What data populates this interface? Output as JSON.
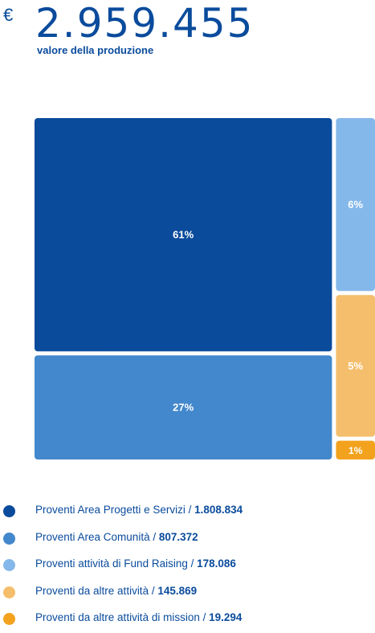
{
  "header": {
    "currency": "€",
    "total": "2.959.455",
    "subtitle": "valore della produzione"
  },
  "chart_data": {
    "type": "treemap",
    "title": "",
    "series": [
      {
        "name": "Proventi Area Progetti e Servizi",
        "value": 1808834,
        "value_label": "1.808.834",
        "percent_label": "61%",
        "color": "#0a4b9c"
      },
      {
        "name": "Proventi Area Comunità",
        "value": 807372,
        "value_label": "807.372",
        "percent_label": "27%",
        "color": "#4387cc"
      },
      {
        "name": "Proventi attività di Fund Raising",
        "value": 178086,
        "value_label": "178.086",
        "percent_label": "6%",
        "color": "#85b8ea"
      },
      {
        "name": "Proventi da altre attività",
        "value": 145869,
        "value_label": "145.869",
        "percent_label": "5%",
        "color": "#f4be6c"
      },
      {
        "name": "Proventi da altre attività di mission",
        "value": 19294,
        "value_label": "19.294",
        "percent_label": "1%",
        "color": "#f3a21e"
      }
    ],
    "legend_position": "bottom"
  }
}
